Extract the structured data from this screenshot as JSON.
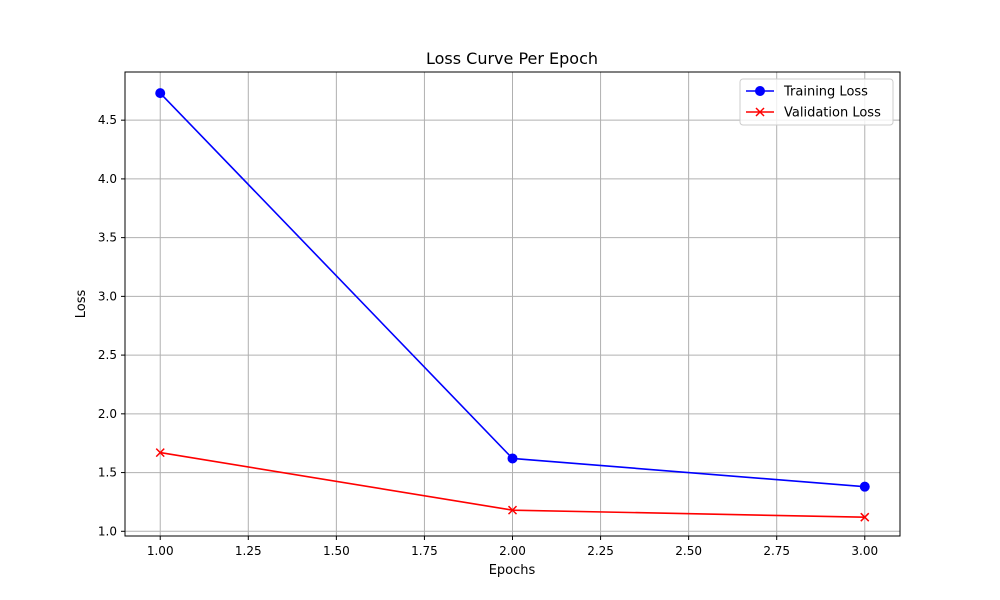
{
  "chart_data": {
    "type": "line",
    "title": "Loss Curve Per Epoch",
    "xlabel": "Epochs",
    "ylabel": "Loss",
    "x": [
      1,
      2,
      3
    ],
    "xlim": [
      0.9,
      3.1
    ],
    "ylim": [
      0.96,
      4.91
    ],
    "xticks": [
      1.0,
      1.25,
      1.5,
      1.75,
      2.0,
      2.25,
      2.5,
      2.75,
      3.0
    ],
    "xtick_labels": [
      "1.00",
      "1.25",
      "1.50",
      "1.75",
      "2.00",
      "2.25",
      "2.50",
      "2.75",
      "3.00"
    ],
    "yticks": [
      1.0,
      1.5,
      2.0,
      2.5,
      3.0,
      3.5,
      4.0,
      4.5
    ],
    "ytick_labels": [
      "1.0",
      "1.5",
      "2.0",
      "2.5",
      "3.0",
      "3.5",
      "4.0",
      "4.5"
    ],
    "grid": true,
    "legend_position": "top-right",
    "series": [
      {
        "name": "Training Loss",
        "values": [
          4.73,
          1.62,
          1.38
        ],
        "color": "#0000ff",
        "marker": "circle"
      },
      {
        "name": "Validation Loss",
        "values": [
          1.67,
          1.18,
          1.12
        ],
        "color": "#ff0000",
        "marker": "x"
      }
    ]
  }
}
